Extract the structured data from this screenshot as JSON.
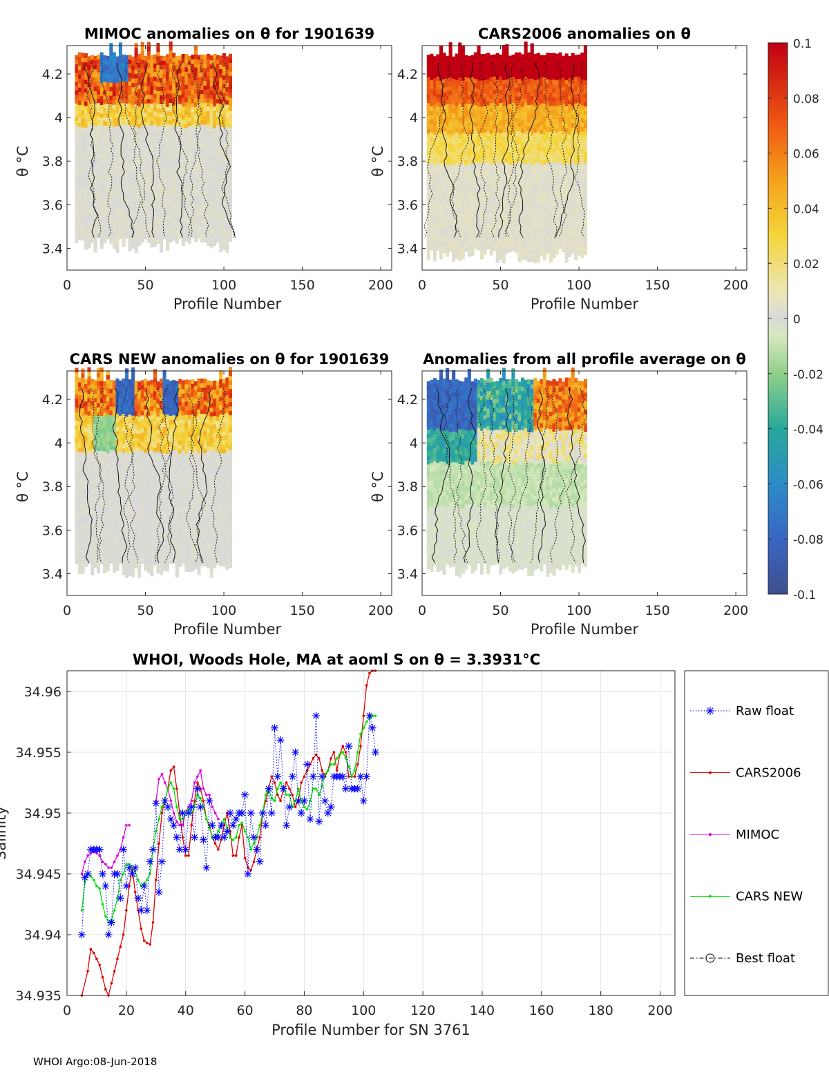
{
  "footer": "WHOI Argo:08-Jun-2018",
  "colors": {
    "raw": "#0000ff",
    "cars2006": "#e00000",
    "mimoc": "#e000e0",
    "carsnew": "#00e000",
    "best": "#000000"
  },
  "colorbar": {
    "ticks": [
      "0.1",
      "0.08",
      "0.06",
      "0.04",
      "0.02",
      "0",
      "-0.02",
      "-0.04",
      "-0.06",
      "-0.08",
      "-0.1"
    ],
    "range": [
      -0.1,
      0.1
    ]
  },
  "panels": [
    {
      "title": "MIMOC anomalies on θ  for 1901639",
      "xlabel": "Profile Number",
      "ylabel": "θ °C",
      "xticks": [
        "0",
        "50",
        "100",
        "150",
        "200"
      ],
      "yticks": [
        "4.2",
        "4",
        "3.8",
        "3.6",
        "3.4"
      ],
      "xlim": [
        0,
        207
      ],
      "ylim": [
        3.3,
        4.33
      ],
      "data_xrange": [
        0,
        105
      ],
      "pattern": "mimoc"
    },
    {
      "title": "CARS2006 anomalies on θ",
      "xlabel": "Profile Number",
      "ylabel": "θ °C",
      "xticks": [
        "0",
        "50",
        "100",
        "150",
        "200"
      ],
      "yticks": [
        "4.2",
        "4",
        "3.8",
        "3.6",
        "3.4"
      ],
      "xlim": [
        0,
        207
      ],
      "ylim": [
        3.3,
        4.33
      ],
      "data_xrange": [
        0,
        105
      ],
      "pattern": "cars2006"
    },
    {
      "title": "CARS NEW anomalies on θ for 1901639",
      "xlabel": "Profile Number",
      "ylabel": "θ °C",
      "xticks": [
        "0",
        "50",
        "100",
        "150",
        "200"
      ],
      "yticks": [
        "4.2",
        "4",
        "3.8",
        "3.6",
        "3.4"
      ],
      "xlim": [
        0,
        207
      ],
      "ylim": [
        3.3,
        4.33
      ],
      "data_xrange": [
        0,
        105
      ],
      "pattern": "carsnew"
    },
    {
      "title": "Anomalies from all profile average on θ",
      "xlabel": "Profile Number",
      "ylabel": "θ °C",
      "xticks": [
        "0",
        "50",
        "100",
        "150",
        "200"
      ],
      "yticks": [
        "4.2",
        "4",
        "3.8",
        "3.6",
        "3.4"
      ],
      "xlim": [
        0,
        207
      ],
      "ylim": [
        3.3,
        4.33
      ],
      "data_xrange": [
        0,
        105
      ],
      "pattern": "avg"
    }
  ],
  "chart_data": {
    "type": "line",
    "title": "WHOI, Woods Hole, MA at aoml S on θ = 3.3931°C",
    "xlabel": "Profile Number for SN 3761",
    "ylabel": "Salinity",
    "xlim": [
      0,
      205
    ],
    "ylim": [
      34.935,
      34.9617
    ],
    "xticks": [
      "0",
      "20",
      "40",
      "60",
      "80",
      "100",
      "120",
      "140",
      "160",
      "180",
      "200"
    ],
    "yticks": [
      "34.96",
      "34.955",
      "34.95",
      "34.945",
      "34.94",
      "34.935"
    ],
    "legend": [
      "Raw float",
      "CARS2006",
      "MIMOC",
      "CARS NEW",
      "Best float"
    ],
    "series": [
      {
        "name": "Raw float",
        "x": [
          5,
          6,
          7,
          8,
          9,
          10,
          11,
          12,
          13,
          14,
          15,
          16,
          17,
          18,
          19,
          20,
          21,
          22,
          23,
          24,
          25,
          26,
          27,
          28,
          29,
          30,
          31,
          32,
          33,
          34,
          35,
          36,
          37,
          38,
          39,
          40,
          41,
          42,
          43,
          44,
          45,
          46,
          47,
          48,
          49,
          50,
          51,
          52,
          53,
          54,
          55,
          56,
          57,
          58,
          59,
          60,
          61,
          62,
          63,
          64,
          65,
          66,
          67,
          68,
          69,
          70,
          71,
          72,
          73,
          74,
          75,
          76,
          77,
          78,
          79,
          80,
          81,
          82,
          83,
          84,
          85,
          86,
          87,
          88,
          89,
          90,
          91,
          92,
          93,
          94,
          95,
          96,
          97,
          98,
          99,
          100,
          101,
          102,
          103,
          104
        ],
        "y": [
          34.94,
          34.9447,
          34.945,
          34.947,
          34.947,
          34.947,
          34.947,
          34.945,
          34.944,
          34.94,
          34.941,
          34.945,
          34.945,
          34.943,
          34.947,
          34.944,
          34.9455,
          34.945,
          34.9455,
          34.943,
          34.942,
          34.944,
          34.942,
          34.946,
          34.947,
          34.9508,
          34.9435,
          34.946,
          34.951,
          34.9505,
          34.9495,
          34.949,
          34.948,
          34.947,
          34.95,
          34.947,
          34.95,
          34.9505,
          34.948,
          34.952,
          34.9505,
          34.9478,
          34.9455,
          34.951,
          34.949,
          34.948,
          34.948,
          34.949,
          34.948,
          34.9485,
          34.95,
          34.949,
          34.9495,
          34.95,
          34.95,
          34.9515,
          34.945,
          34.95,
          34.948,
          34.947,
          34.946,
          34.95,
          34.949,
          34.952,
          34.95,
          34.957,
          34.953,
          34.956,
          34.952,
          34.949,
          34.9505,
          34.953,
          34.955,
          34.951,
          34.95,
          34.951,
          34.954,
          34.9495,
          34.953,
          34.958,
          34.9493,
          34.953,
          34.951,
          34.95,
          34.9505,
          34.953,
          34.953,
          34.953,
          34.953,
          34.952,
          34.9555,
          34.952,
          34.952,
          34.952,
          34.953,
          34.951,
          34.953,
          34.958,
          34.957,
          34.955
        ],
        "marker": "*",
        "style": "dotted"
      },
      {
        "name": "CARS2006",
        "x": [
          5,
          7,
          8,
          9,
          10,
          11,
          12,
          13,
          14,
          15,
          16,
          17,
          18,
          19,
          20,
          21,
          22,
          23,
          24,
          25,
          26,
          27,
          28,
          29,
          30,
          31,
          32,
          33,
          34,
          35,
          36,
          37,
          38,
          39,
          40,
          41,
          42,
          43,
          44,
          45,
          46,
          47,
          48,
          49,
          50,
          51,
          52,
          53,
          54,
          55,
          56,
          57,
          58,
          59,
          60,
          61,
          62,
          63,
          64,
          65,
          66,
          67,
          68,
          69,
          70,
          71,
          72,
          73,
          74,
          75,
          76,
          77,
          78,
          79,
          80,
          81,
          82,
          83,
          84,
          85,
          86,
          87,
          88,
          89,
          90,
          91,
          92,
          93,
          94,
          95,
          96,
          97,
          98,
          99,
          100,
          101,
          102,
          103,
          104
        ],
        "y": [
          34.935,
          34.937,
          34.9388,
          34.9385,
          34.938,
          34.9375,
          34.9365,
          34.9355,
          34.935,
          34.936,
          34.937,
          34.938,
          34.939,
          34.94,
          34.942,
          34.944,
          34.9455,
          34.9435,
          34.942,
          34.9405,
          34.9395,
          34.9393,
          34.9392,
          34.941,
          34.9445,
          34.9475,
          34.95,
          34.951,
          34.952,
          34.9535,
          34.9538,
          34.952,
          34.95,
          34.948,
          34.9465,
          34.9465,
          34.949,
          34.951,
          34.9525,
          34.952,
          34.951,
          34.9495,
          34.949,
          34.948,
          34.9475,
          34.947,
          34.9478,
          34.949,
          34.95,
          34.9485,
          34.9465,
          34.9465,
          34.948,
          34.949,
          34.9463,
          34.9455,
          34.9453,
          34.946,
          34.947,
          34.948,
          34.95,
          34.951,
          34.952,
          34.953,
          34.9525,
          34.9515,
          34.951,
          34.952,
          34.9525,
          34.952,
          34.9515,
          34.9505,
          34.951,
          34.9525,
          34.953,
          34.9535,
          34.954,
          34.9545,
          34.9548,
          34.9545,
          34.9535,
          34.953,
          34.9535,
          34.9545,
          34.955,
          34.9535,
          34.9548,
          34.9555,
          34.955,
          34.953,
          34.953,
          34.953,
          34.954,
          34.9555,
          34.958,
          34.9605,
          34.9615,
          34.9617,
          34.9617
        ],
        "marker": ".",
        "style": "solid"
      },
      {
        "name": "MIMOC",
        "x": [
          5,
          6,
          7,
          8,
          9,
          10,
          11,
          12,
          13,
          14,
          15,
          16,
          17,
          18,
          19,
          20,
          21,
          30,
          31,
          32,
          33,
          34,
          35,
          36,
          37,
          38,
          39,
          40,
          41,
          42,
          43,
          44,
          45,
          46,
          47,
          48,
          49,
          50,
          51
        ],
        "y": [
          34.945,
          34.946,
          34.9465,
          34.9467,
          34.9468,
          34.9467,
          34.9465,
          34.946,
          34.9458,
          34.9455,
          34.9455,
          34.946,
          34.9465,
          34.947,
          34.948,
          34.949,
          34.949,
          34.951,
          34.9528,
          34.9532,
          34.9525,
          34.952,
          34.951,
          34.95,
          34.9493,
          34.949,
          34.949,
          34.95,
          34.9505,
          34.951,
          34.9525,
          34.953,
          34.9535,
          34.952,
          34.9515,
          34.9515,
          34.9505,
          34.95,
          34.9495
        ],
        "marker": ".",
        "style": "solid"
      },
      {
        "name": "CARS NEW",
        "x": [
          5,
          6,
          7,
          8,
          9,
          10,
          11,
          12,
          13,
          14,
          15,
          16,
          17,
          18,
          19,
          20,
          21,
          22,
          23,
          24,
          25,
          26,
          27,
          28,
          29,
          30,
          31,
          32,
          33,
          34,
          35,
          36,
          37,
          38,
          39,
          40,
          41,
          42,
          43,
          44,
          45,
          46,
          47,
          48,
          49,
          50,
          51,
          52,
          53,
          54,
          55,
          56,
          57,
          58,
          59,
          60,
          61,
          62,
          63,
          64,
          65,
          66,
          67,
          68,
          69,
          70,
          71,
          72,
          73,
          74,
          75,
          76,
          77,
          78,
          79,
          80,
          81,
          82,
          83,
          84,
          85,
          86,
          87,
          88,
          89,
          90,
          91,
          92,
          93,
          94,
          95,
          96,
          97,
          98,
          99,
          100,
          101,
          102,
          103,
          104
        ],
        "y": [
          34.942,
          34.9443,
          34.945,
          34.9448,
          34.9445,
          34.944,
          34.9438,
          34.9425,
          34.9415,
          34.941,
          34.9412,
          34.942,
          34.943,
          34.9445,
          34.945,
          34.9458,
          34.9458,
          34.9455,
          34.9452,
          34.9445,
          34.944,
          34.9442,
          34.9445,
          34.945,
          34.947,
          34.9485,
          34.9495,
          34.9505,
          34.951,
          34.952,
          34.9525,
          34.952,
          34.9505,
          34.9495,
          34.9495,
          34.95,
          34.9503,
          34.95,
          34.9505,
          34.9515,
          34.9512,
          34.9505,
          34.9495,
          34.9488,
          34.948,
          34.948,
          34.9485,
          34.949,
          34.9495,
          34.9488,
          34.948,
          34.9478,
          34.948,
          34.949,
          34.9492,
          34.9485,
          34.948,
          34.947,
          34.9475,
          34.948,
          34.949,
          34.95,
          34.9515,
          34.952,
          34.9512,
          34.951,
          34.952,
          34.9525,
          34.952,
          34.9515,
          34.9515,
          34.9505,
          34.951,
          34.952,
          34.951,
          34.9505,
          34.9503,
          34.951,
          34.952,
          34.952,
          34.9515,
          34.9522,
          34.9532,
          34.9535,
          34.954,
          34.954,
          34.9545,
          34.9548,
          34.955,
          34.9545,
          34.9538,
          34.953,
          34.9535,
          34.955,
          34.9565,
          34.957,
          34.9575,
          34.9578,
          34.958,
          34.958
        ],
        "marker": ".",
        "style": "solid"
      }
    ]
  }
}
